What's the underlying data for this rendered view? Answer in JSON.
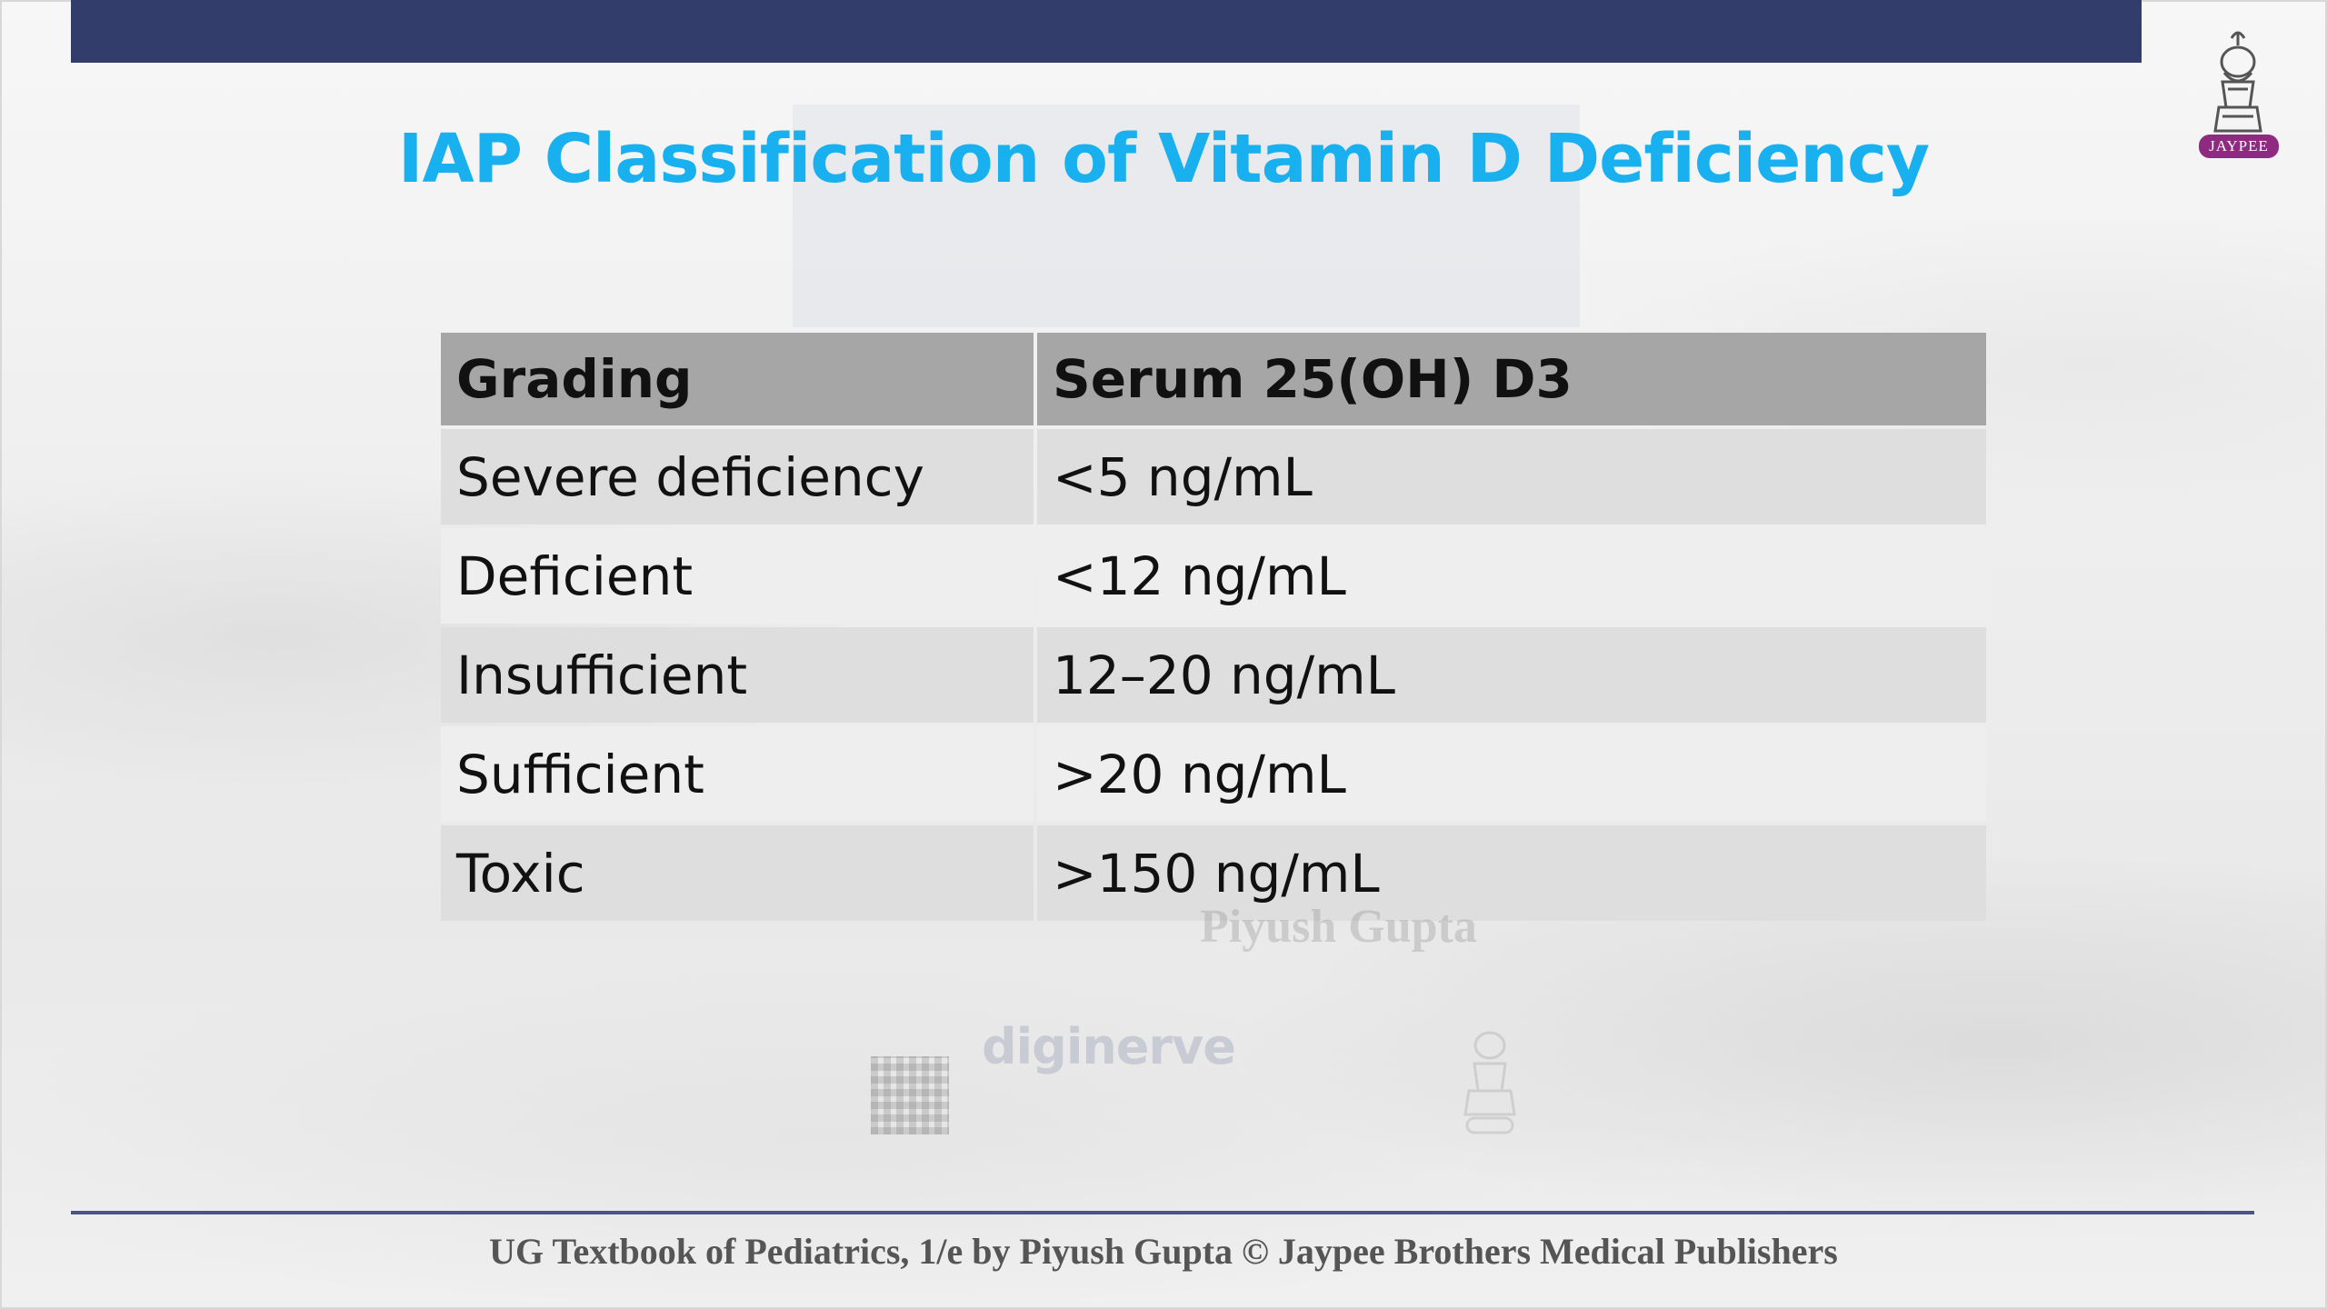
{
  "slide": {
    "title": "IAP Classification of Vitamin D Deficiency",
    "footer": "UG Textbook of Pediatrics, 1/e by Piyush Gupta © Jaypee Brothers Medical Publishers",
    "logo_text": "JAYPEE",
    "watermark_author": "Piyush Gupta",
    "watermark_brand": "diginerve"
  },
  "table": {
    "headers": [
      "Grading",
      "Serum 25(OH) D3"
    ],
    "rows": [
      [
        "Severe deficiency",
        "<5 ng/mL"
      ],
      [
        "Deficient",
        "<12 ng/mL"
      ],
      [
        "Insufficient",
        "12–20 ng/mL"
      ],
      [
        "Sufficient",
        ">20 ng/mL"
      ],
      [
        "Toxic",
        ">150 ng/mL"
      ]
    ]
  },
  "colors": {
    "title": "#18b0ee",
    "top_bar": "#333d6b",
    "header_bg": "#a6a6a6",
    "row_odd": "#dedede",
    "row_even": "#eeeeee",
    "logo_badge": "#8e2a80"
  },
  "icons": {
    "logo": "jaypee-logo-icon",
    "qr": "qr-code-icon",
    "seal": "jaypee-seal-icon"
  }
}
